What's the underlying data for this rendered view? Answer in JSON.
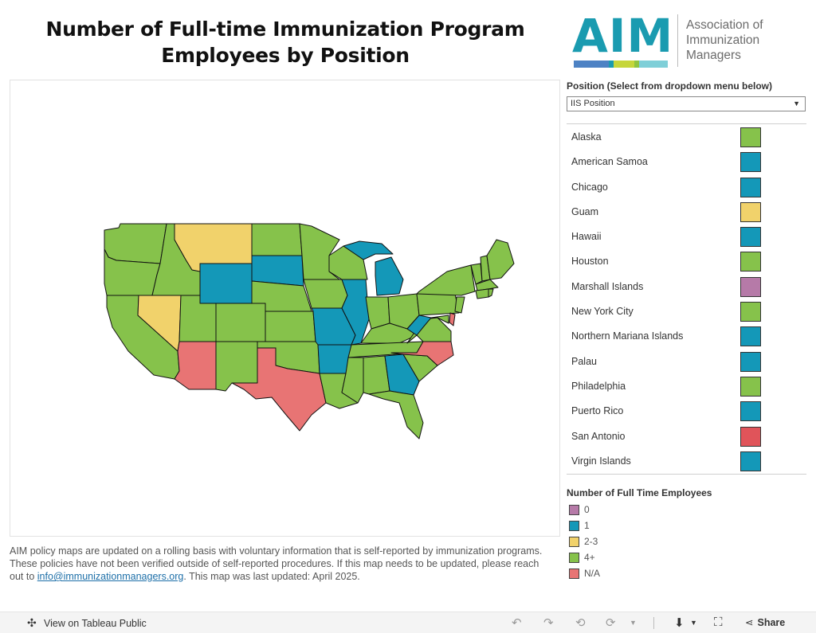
{
  "header": {
    "title": "Number of Full-time Immunization Program Employees by Position"
  },
  "logo": {
    "wordmark": "AIM",
    "org_line1": "Association of",
    "org_line2": "Immunization",
    "org_line3": "Managers",
    "bar_colors": [
      "#4d82c4",
      "#1a9bb0",
      "#c6d63a",
      "#8fc540",
      "#7fcfd8"
    ]
  },
  "filter": {
    "label": "Position (Select from dropdown menu below)",
    "selected": "IIS Position",
    "caret_icon": "triangle-down"
  },
  "colors": {
    "zero": "#b67aa8",
    "one": "#1498b8",
    "two_three": "#f1d26b",
    "four_plus": "#86c24b",
    "na": "#e87474",
    "san_antonio": "#e0545a"
  },
  "jurisdictions": [
    {
      "name": "Alaska",
      "color": "#86c24b"
    },
    {
      "name": "American Samoa",
      "color": "#1498b8"
    },
    {
      "name": "Chicago",
      "color": "#1498b8"
    },
    {
      "name": "Guam",
      "color": "#f1d26b"
    },
    {
      "name": "Hawaii",
      "color": "#1498b8"
    },
    {
      "name": "Houston",
      "color": "#86c24b"
    },
    {
      "name": "Marshall Islands",
      "color": "#b67aa8"
    },
    {
      "name": "New York City",
      "color": "#86c24b"
    },
    {
      "name": "Northern Mariana Islands",
      "color": "#1498b8"
    },
    {
      "name": "Palau",
      "color": "#1498b8"
    },
    {
      "name": "Philadelphia",
      "color": "#86c24b"
    },
    {
      "name": "Puerto Rico",
      "color": "#1498b8"
    },
    {
      "name": "San Antonio",
      "color": "#e0545a"
    },
    {
      "name": "Virgin Islands",
      "color": "#1498b8"
    }
  ],
  "legend": {
    "title": "Number of Full Time Employees",
    "items": [
      {
        "label": "0",
        "color": "#b67aa8"
      },
      {
        "label": "1",
        "color": "#1498b8"
      },
      {
        "label": "2-3",
        "color": "#f1d26b"
      },
      {
        "label": "4+",
        "color": "#86c24b"
      },
      {
        "label": "N/A",
        "color": "#e87474"
      }
    ]
  },
  "footnote": {
    "text_before": "AIM policy maps are updated on a rolling basis with voluntary information that is self-reported by immunization programs. These policies have not been verified outside of self-reported procedures. If this map needs to be updated, please reach out to ",
    "email": "info@immunizationmanagers.org",
    "text_after": ". This map was last updated: April 2025."
  },
  "toolbar": {
    "view_label": "View on Tableau Public",
    "share_label": "Share"
  }
}
